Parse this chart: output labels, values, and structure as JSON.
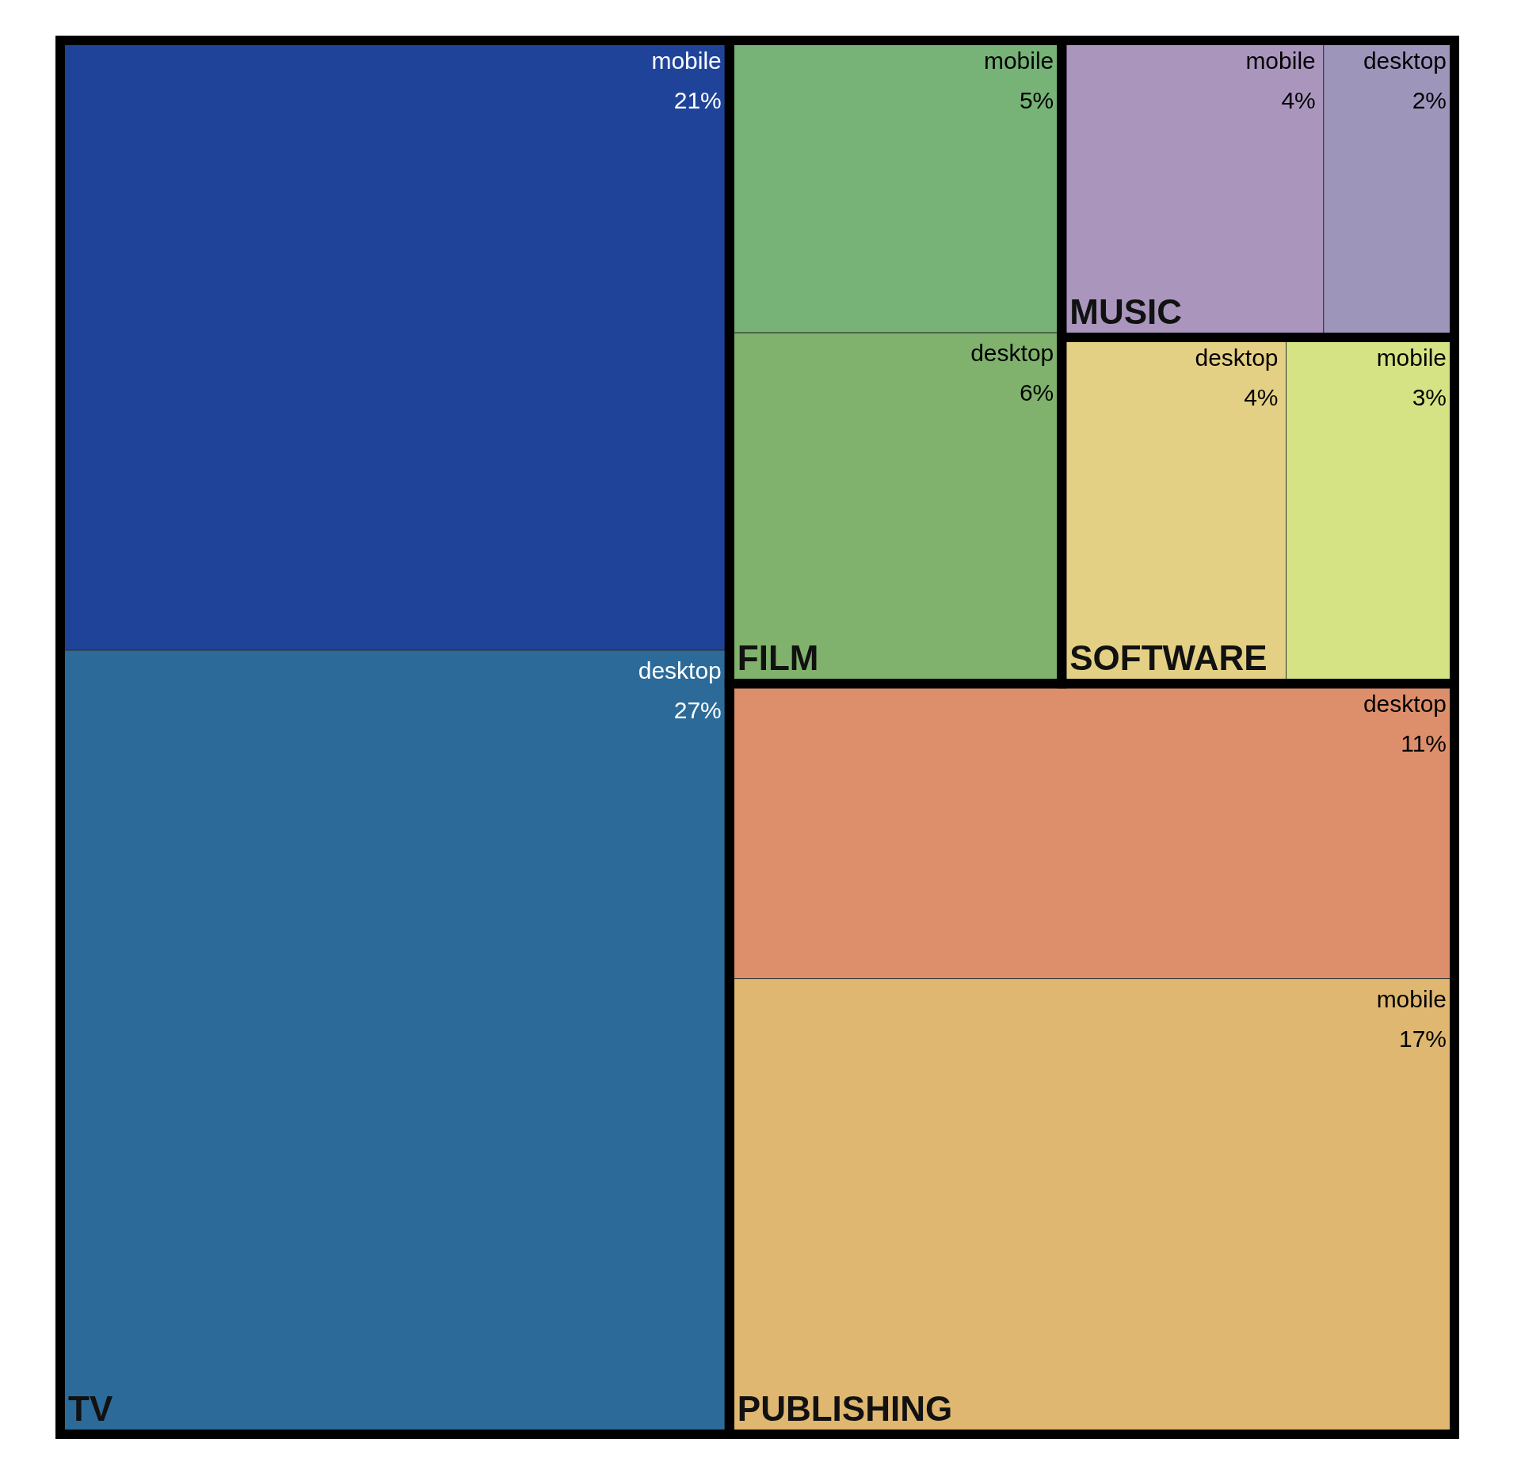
{
  "chart_data": {
    "type": "other",
    "categories": [
      "mobile",
      "desktop",
      "mobile",
      "desktop",
      "mobile",
      "desktop",
      "desktop",
      "mobile",
      "desktop",
      "mobile"
    ],
    "series": [
      {
        "name": "TV",
        "colors": [
          "#1f4399",
          "#2c6b99",
          null,
          null,
          null,
          null,
          null,
          null,
          null,
          null
        ],
        "values": [
          21,
          27,
          null,
          null,
          null,
          null,
          null,
          null,
          null,
          null
        ],
        "value_labels": [
          "21%",
          "27%",
          null,
          null,
          null,
          null,
          null,
          null,
          null,
          null
        ]
      },
      {
        "name": "FILM",
        "colors": [
          null,
          null,
          "#77b277",
          "#80b26d",
          null,
          null,
          null,
          null,
          null,
          null
        ],
        "values": [
          null,
          null,
          5,
          6,
          null,
          null,
          null,
          null,
          null,
          null
        ],
        "value_labels": [
          null,
          null,
          "5%",
          "6%",
          null,
          null,
          null,
          null,
          null,
          null
        ]
      },
      {
        "name": "MUSIC",
        "colors": [
          null,
          null,
          null,
          null,
          "#aa96bd",
          "#9e95bb",
          null,
          null,
          null,
          null
        ],
        "values": [
          null,
          null,
          null,
          null,
          4,
          2,
          null,
          null,
          null,
          null
        ],
        "value_labels": [
          null,
          null,
          null,
          null,
          "4%",
          "2%",
          null,
          null,
          null,
          null
        ]
      },
      {
        "name": "SOFTWARE",
        "colors": [
          null,
          null,
          null,
          null,
          null,
          null,
          "#e4d084",
          "#d6e384",
          null,
          null
        ],
        "values": [
          null,
          null,
          null,
          null,
          null,
          null,
          4,
          3,
          null,
          null
        ],
        "value_labels": [
          null,
          null,
          null,
          null,
          null,
          null,
          "4%",
          "3%",
          null,
          null
        ]
      },
      {
        "name": "PUBLISHING",
        "colors": [
          null,
          null,
          null,
          null,
          null,
          null,
          null,
          null,
          "#dd8f6c",
          "#dfb770"
        ],
        "values": [
          null,
          null,
          null,
          null,
          null,
          null,
          null,
          null,
          11,
          17
        ],
        "value_labels": [
          null,
          null,
          null,
          null,
          null,
          null,
          null,
          null,
          "11%",
          "17%"
        ]
      }
    ]
  }
}
